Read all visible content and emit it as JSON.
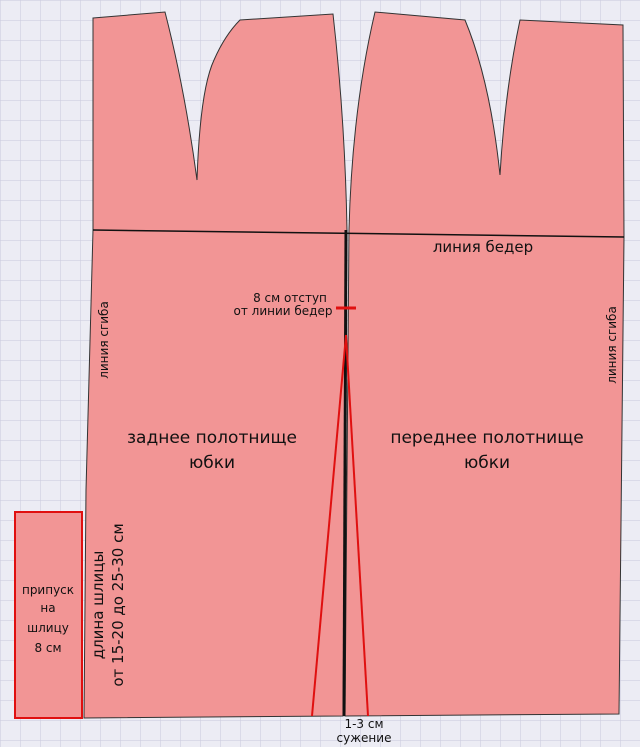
{
  "labels": {
    "hip_line": "линия бедер",
    "offset": [
      "8 см отступ",
      "от линии бедер"
    ],
    "fold_left": "линия сгиба",
    "fold_right": "линия сгиба",
    "back_panel": [
      "заднее полотнище",
      "юбки"
    ],
    "front_panel": [
      "переднее полотнище",
      "юбки"
    ],
    "allowance": [
      "припуск",
      "на",
      "шлицу",
      "8 см"
    ],
    "slit_length": [
      "длина шлицы",
      "от 15-20 до 25-30 см"
    ],
    "narrowing": [
      "1-3 см",
      "сужение"
    ]
  }
}
